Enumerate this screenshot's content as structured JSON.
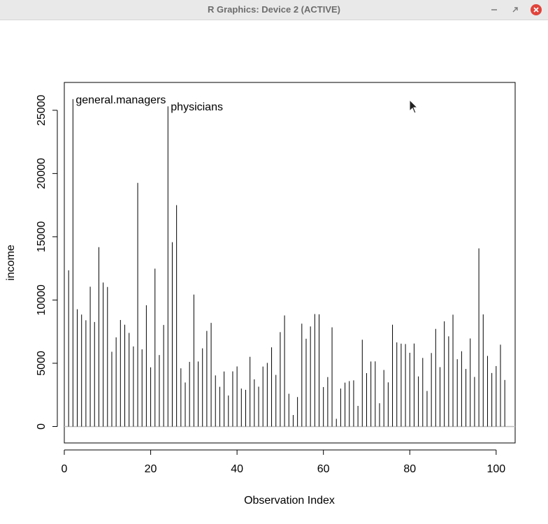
{
  "window": {
    "title": "R Graphics: Device 2 (ACTIVE)",
    "buttons": {
      "minimize_icon": "minimize-icon",
      "restore_icon": "restore-icon",
      "close_icon": "close-icon",
      "close_color": "#e0433b"
    }
  },
  "chart_data": {
    "type": "bar",
    "style": "histogram-spikes",
    "xlabel": "Observation Index",
    "ylabel": "income",
    "xlim": [
      0,
      104.4
    ],
    "ylim": [
      -1300,
      27200
    ],
    "xticks": [
      0,
      20,
      40,
      60,
      80,
      100
    ],
    "yticks": [
      0,
      5000,
      10000,
      15000,
      20000,
      25000
    ],
    "baseline": 0,
    "baseline_color": "#bebebe",
    "annotations": [
      {
        "index": 2,
        "label": "general.managers"
      },
      {
        "index": 24,
        "label": "physicians"
      }
    ],
    "values": [
      12350,
      25880,
      9270,
      8850,
      8400,
      11050,
      8260,
      14180,
      11380,
      11030,
      5910,
      7050,
      8420,
      8050,
      7400,
      6330,
      19260,
      6100,
      9590,
      4680,
      12480,
      5650,
      8030,
      25310,
      14570,
      17500,
      4600,
      3480,
      5110,
      10430,
      5140,
      6180,
      7560,
      8190,
      4040,
      3140,
      4350,
      2450,
      4360,
      4750,
      3000,
      2900,
      5510,
      3730,
      3150,
      4740,
      5030,
      6260,
      4080,
      7460,
      8780,
      2590,
      910,
      2330,
      8130,
      6940,
      7910,
      8890,
      8870,
      3120,
      3910,
      7840,
      610,
      3000,
      3470,
      3590,
      3650,
      1630,
      6860,
      4220,
      5140,
      5150,
      1840,
      4470,
      3490,
      8050,
      6650,
      6550,
      6520,
      5830,
      6560,
      3960,
      5420,
      2810,
      5810,
      7720,
      4690,
      8320,
      7130,
      8840,
      5320,
      5950,
      4550,
      6960,
      3920,
      14080,
      8860,
      5580,
      4230,
      4780,
      6470,
      3680
    ]
  }
}
